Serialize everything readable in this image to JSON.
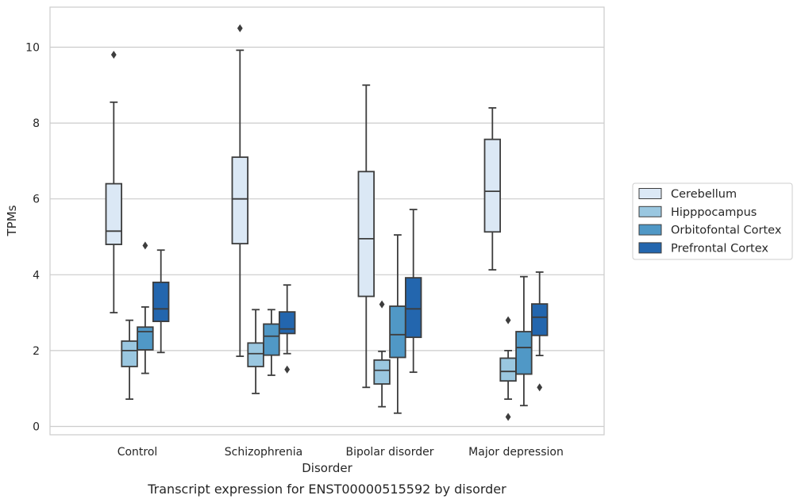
{
  "caption": "Transcript expression for ENST00000515592 by disorder",
  "chart_data": {
    "type": "box",
    "xlabel": "Disorder",
    "ylabel": "TPMs",
    "ylim": [
      -0.2,
      11.0
    ],
    "yticks": [
      0,
      2,
      4,
      6,
      8,
      10
    ],
    "grid": "horizontal",
    "legend_placement": "right",
    "categories": [
      "Control",
      "Schizophrenia",
      "Bipolar disorder",
      "Major depression"
    ],
    "series": [
      {
        "name": "Cerebellum",
        "color": "#dbe8f5",
        "boxes": [
          {
            "whisker_low": 3.0,
            "q1": 4.8,
            "median": 5.15,
            "q3": 6.4,
            "whisker_high": 8.55,
            "outliers": [
              9.8
            ]
          },
          {
            "whisker_low": 1.85,
            "q1": 4.82,
            "median": 6.0,
            "q3": 7.1,
            "whisker_high": 9.92,
            "outliers": [
              10.5
            ]
          },
          {
            "whisker_low": 1.03,
            "q1": 3.43,
            "median": 4.95,
            "q3": 6.72,
            "whisker_high": 9.0,
            "outliers": []
          },
          {
            "whisker_low": 4.13,
            "q1": 5.13,
            "median": 6.2,
            "q3": 7.57,
            "whisker_high": 8.4,
            "outliers": []
          }
        ]
      },
      {
        "name": "Hipppocampus",
        "color": "#9ac7e0",
        "boxes": [
          {
            "whisker_low": 0.72,
            "q1": 1.58,
            "median": 2.0,
            "q3": 2.25,
            "whisker_high": 2.8,
            "outliers": []
          },
          {
            "whisker_low": 0.87,
            "q1": 1.58,
            "median": 1.92,
            "q3": 2.2,
            "whisker_high": 3.08,
            "outliers": []
          },
          {
            "whisker_low": 0.52,
            "q1": 1.12,
            "median": 1.48,
            "q3": 1.75,
            "whisker_high": 1.98,
            "outliers": [
              3.22
            ]
          },
          {
            "whisker_low": 0.72,
            "q1": 1.2,
            "median": 1.45,
            "q3": 1.8,
            "whisker_high": 2.0,
            "outliers": [
              2.8,
              0.25
            ]
          }
        ]
      },
      {
        "name": "Orbitofontal Cortex",
        "color": "#5098c6",
        "boxes": [
          {
            "whisker_low": 1.4,
            "q1": 2.02,
            "median": 2.5,
            "q3": 2.62,
            "whisker_high": 3.15,
            "outliers": [
              4.77
            ]
          },
          {
            "whisker_low": 1.35,
            "q1": 1.88,
            "median": 2.38,
            "q3": 2.7,
            "whisker_high": 3.08,
            "outliers": []
          },
          {
            "whisker_low": 0.35,
            "q1": 1.82,
            "median": 2.42,
            "q3": 3.17,
            "whisker_high": 5.05,
            "outliers": []
          },
          {
            "whisker_low": 0.55,
            "q1": 1.38,
            "median": 2.08,
            "q3": 2.5,
            "whisker_high": 3.95,
            "outliers": []
          }
        ]
      },
      {
        "name": "Prefrontal Cortex",
        "color": "#2366ae",
        "boxes": [
          {
            "whisker_low": 1.95,
            "q1": 2.77,
            "median": 3.1,
            "q3": 3.8,
            "whisker_high": 4.65,
            "outliers": []
          },
          {
            "whisker_low": 1.92,
            "q1": 2.45,
            "median": 2.57,
            "q3": 3.02,
            "whisker_high": 3.73,
            "outliers": [
              1.5
            ]
          },
          {
            "whisker_low": 1.43,
            "q1": 2.35,
            "median": 3.1,
            "q3": 3.92,
            "whisker_high": 5.72,
            "outliers": []
          },
          {
            "whisker_low": 1.87,
            "q1": 2.4,
            "median": 2.88,
            "q3": 3.23,
            "whisker_high": 4.07,
            "outliers": [
              1.03
            ]
          }
        ]
      }
    ]
  }
}
